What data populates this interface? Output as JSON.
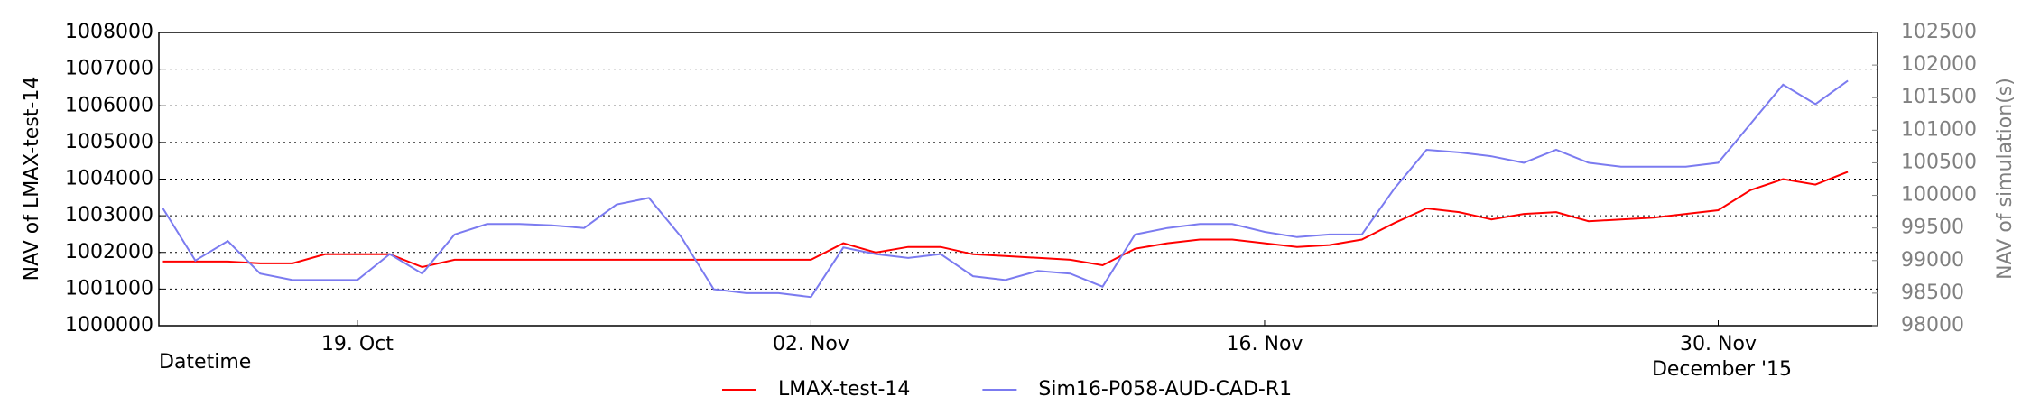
{
  "chart_data": {
    "type": "line",
    "x_label": "Datetime",
    "x_sublabel": "December '15",
    "y_label": "NAV of LMAX-test-14",
    "y2_label": "NAV of simulation(s)",
    "y2_color": "#808080",
    "grid": true,
    "legend": "bottom",
    "xlim": [
      "2015-10-12T21:00:00Z",
      "2015-12-04T22:00:00Z"
    ],
    "xticks": [
      {
        "value": "2015-10-19",
        "label": "19. Oct"
      },
      {
        "value": "2015-11-02",
        "label": "02. Nov"
      },
      {
        "value": "2015-11-16",
        "label": "16. Nov"
      },
      {
        "value": "2015-11-30",
        "label": "30. Nov"
      }
    ],
    "ylim": [
      1000000,
      1008000
    ],
    "yticks": [
      1000000,
      1001000,
      1002000,
      1003000,
      1004000,
      1005000,
      1006000,
      1007000,
      1008000
    ],
    "y2lim": [
      98000,
      102500
    ],
    "y2ticks": [
      98000,
      98500,
      99000,
      99500,
      100000,
      100500,
      101000,
      101500,
      102000,
      102500
    ],
    "x": [
      "2015-10-13",
      "2015-10-14",
      "2015-10-15",
      "2015-10-16",
      "2015-10-17",
      "2015-10-18",
      "2015-10-19",
      "2015-10-20",
      "2015-10-21",
      "2015-10-22",
      "2015-10-23",
      "2015-10-24",
      "2015-10-25",
      "2015-10-26",
      "2015-10-27",
      "2015-10-28",
      "2015-10-29",
      "2015-10-30",
      "2015-10-31",
      "2015-11-01",
      "2015-11-02",
      "2015-11-03",
      "2015-11-04",
      "2015-11-05",
      "2015-11-06",
      "2015-11-07",
      "2015-11-08",
      "2015-11-09",
      "2015-11-10",
      "2015-11-11",
      "2015-11-12",
      "2015-11-13",
      "2015-11-14",
      "2015-11-15",
      "2015-11-16",
      "2015-11-17",
      "2015-11-18",
      "2015-11-19",
      "2015-11-20",
      "2015-11-21",
      "2015-11-22",
      "2015-11-23",
      "2015-11-24",
      "2015-11-25",
      "2015-11-26",
      "2015-11-27",
      "2015-11-28",
      "2015-11-29",
      "2015-11-30",
      "2015-12-01",
      "2015-12-02",
      "2015-12-03",
      "2015-12-04"
    ],
    "series": [
      {
        "name": "LMAX-test-14",
        "color": "#ff0000",
        "axis": "y",
        "values": [
          1001750,
          1001750,
          1001750,
          1001700,
          1001700,
          1001950,
          1001950,
          1001950,
          1001600,
          1001800,
          1001800,
          1001800,
          1001800,
          1001800,
          1001800,
          1001800,
          1001800,
          1001800,
          1001800,
          1001800,
          1001800,
          1002250,
          1002000,
          1002150,
          1002150,
          1001950,
          1001900,
          1001850,
          1001800,
          1001650,
          1002100,
          1002250,
          1002350,
          1002350,
          1002250,
          1002150,
          1002200,
          1002350,
          1002800,
          1003200,
          1003100,
          1002900,
          1003050,
          1003100,
          1002850,
          1002900,
          1002950,
          1003050,
          1003150,
          1003700,
          1004000,
          1003850,
          1004200
        ]
      },
      {
        "name": "Sim16-P058-AUD-CAD-R1",
        "color": "#7b7bf0",
        "axis": "y2",
        "values": [
          99800,
          99000,
          99300,
          98800,
          98700,
          98700,
          98700,
          99100,
          98800,
          99400,
          99560,
          99560,
          99540,
          99500,
          99860,
          99960,
          99360,
          98560,
          98500,
          98500,
          98440,
          99200,
          99100,
          99040,
          99100,
          98760,
          98700,
          98840,
          98800,
          98600,
          99400,
          99500,
          99560,
          99560,
          99440,
          99360,
          99400,
          99400,
          100100,
          100700,
          100660,
          100600,
          100500,
          100700,
          100500,
          100440,
          100440,
          100440,
          100500,
          101100,
          101700,
          101400,
          101760
        ]
      }
    ]
  }
}
